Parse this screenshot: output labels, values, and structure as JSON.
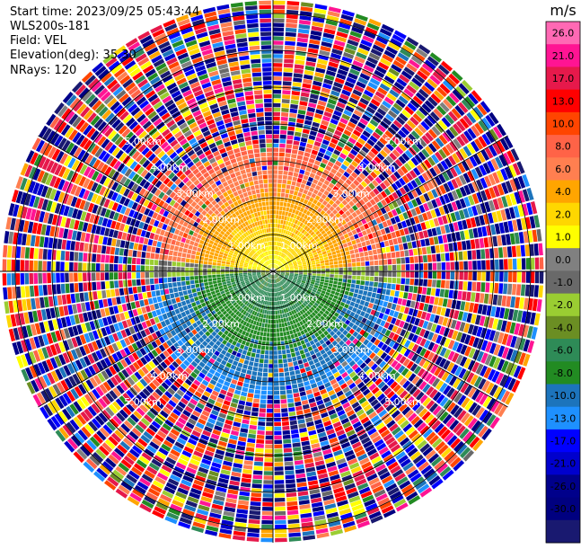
{
  "header": {
    "start_time": "Start time: 2023/09/25 05:43:44",
    "instrument": "WLS200s-181",
    "field": "Field: VEL",
    "elevation": "Elevation(deg): 35.30",
    "nrays": "NRays: 120"
  },
  "chart_data": {
    "type": "heatmap",
    "projection": "polar",
    "field": "VEL",
    "n_rays": 120,
    "grid": true,
    "range_labels": [
      "1.00km",
      "2.00km",
      "3.00km",
      "4.00km",
      "5.00km"
    ],
    "colorbar": {
      "title": "m/s",
      "position": "right",
      "ticks": [
        "26.0",
        "21.0",
        "17.0",
        "13.0",
        "10.0",
        "8.0",
        "6.0",
        "4.0",
        "2.0",
        "1.0",
        "0.0",
        "-1.0",
        "-2.0",
        "-4.0",
        "-6.0",
        "-8.0",
        "-10.0",
        "-13.0",
        "-17.0",
        "-21.0",
        "-26.0",
        "-30.0"
      ],
      "bounds": [
        -30,
        -26,
        -21,
        -17,
        -13,
        -10,
        -8,
        -6,
        -4,
        -2,
        -1,
        0,
        1,
        2,
        4,
        6,
        8,
        10,
        13,
        17,
        21,
        26,
        30
      ],
      "colors": [
        "#191970",
        "#000080",
        "#00008b",
        "#0000cd",
        "#0000ff",
        "#1e90ff",
        "#1c74bc",
        "#228b22",
        "#2e8b57",
        "#6b8e23",
        "#9acd32",
        "#696969",
        "#808080",
        "#ffff00",
        "#ffd700",
        "#ffa500",
        "#ff7f50",
        "#ff6347",
        "#ff4500",
        "#ff0000",
        "#e6194b",
        "#ff1493",
        "#ff69b4"
      ]
    }
  }
}
